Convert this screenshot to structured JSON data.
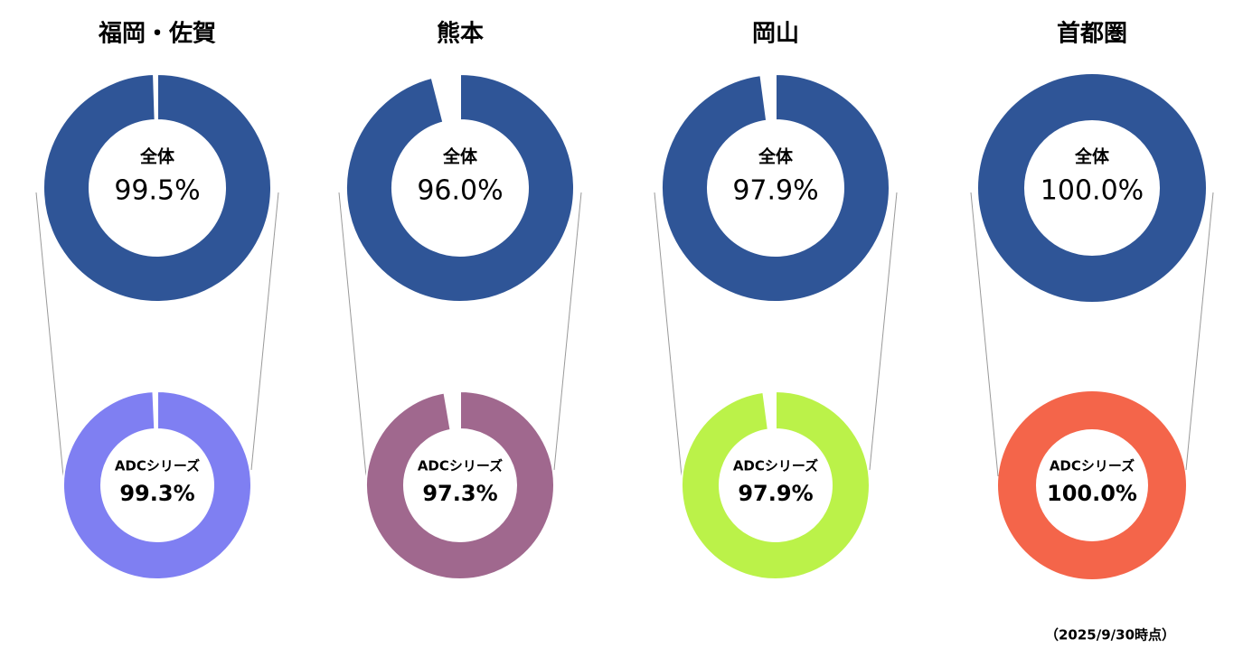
{
  "chart_data": [
    {
      "type": "donut",
      "title": "福岡・佐賀",
      "label": "全体",
      "values": [
        99.5
      ],
      "value_labels": [
        "99.5%"
      ],
      "color": "#2f5597"
    },
    {
      "type": "donut",
      "title": "熊本",
      "label": "全体",
      "values": [
        96.0
      ],
      "value_labels": [
        "96.0%"
      ],
      "color": "#2f5597"
    },
    {
      "type": "donut",
      "title": "岡山",
      "label": "全体",
      "values": [
        97.9
      ],
      "value_labels": [
        "97.9%"
      ],
      "color": "#2f5597"
    },
    {
      "type": "donut",
      "title": "首都圏",
      "label": "全体",
      "values": [
        100.0
      ],
      "value_labels": [
        "100.0%"
      ],
      "color": "#2f5597"
    },
    {
      "type": "donut",
      "label": "ADCシリーズ",
      "values": [
        99.3
      ],
      "value_labels": [
        "99.3%"
      ],
      "color": "#7f7ff2"
    },
    {
      "type": "donut",
      "label": "ADCシリーズ",
      "values": [
        97.3
      ],
      "value_labels": [
        "97.3%"
      ],
      "color": "#a0688e"
    },
    {
      "type": "donut",
      "label": "ADCシリーズ",
      "values": [
        97.9
      ],
      "value_labels": [
        "97.9%"
      ],
      "color": "#bbf249"
    },
    {
      "type": "donut",
      "label": "ADCシリーズ",
      "values": [
        100.0
      ],
      "value_labels": [
        "100.0%"
      ],
      "color": "#f4654a"
    }
  ],
  "footnote": "（2025/9/30時点）"
}
